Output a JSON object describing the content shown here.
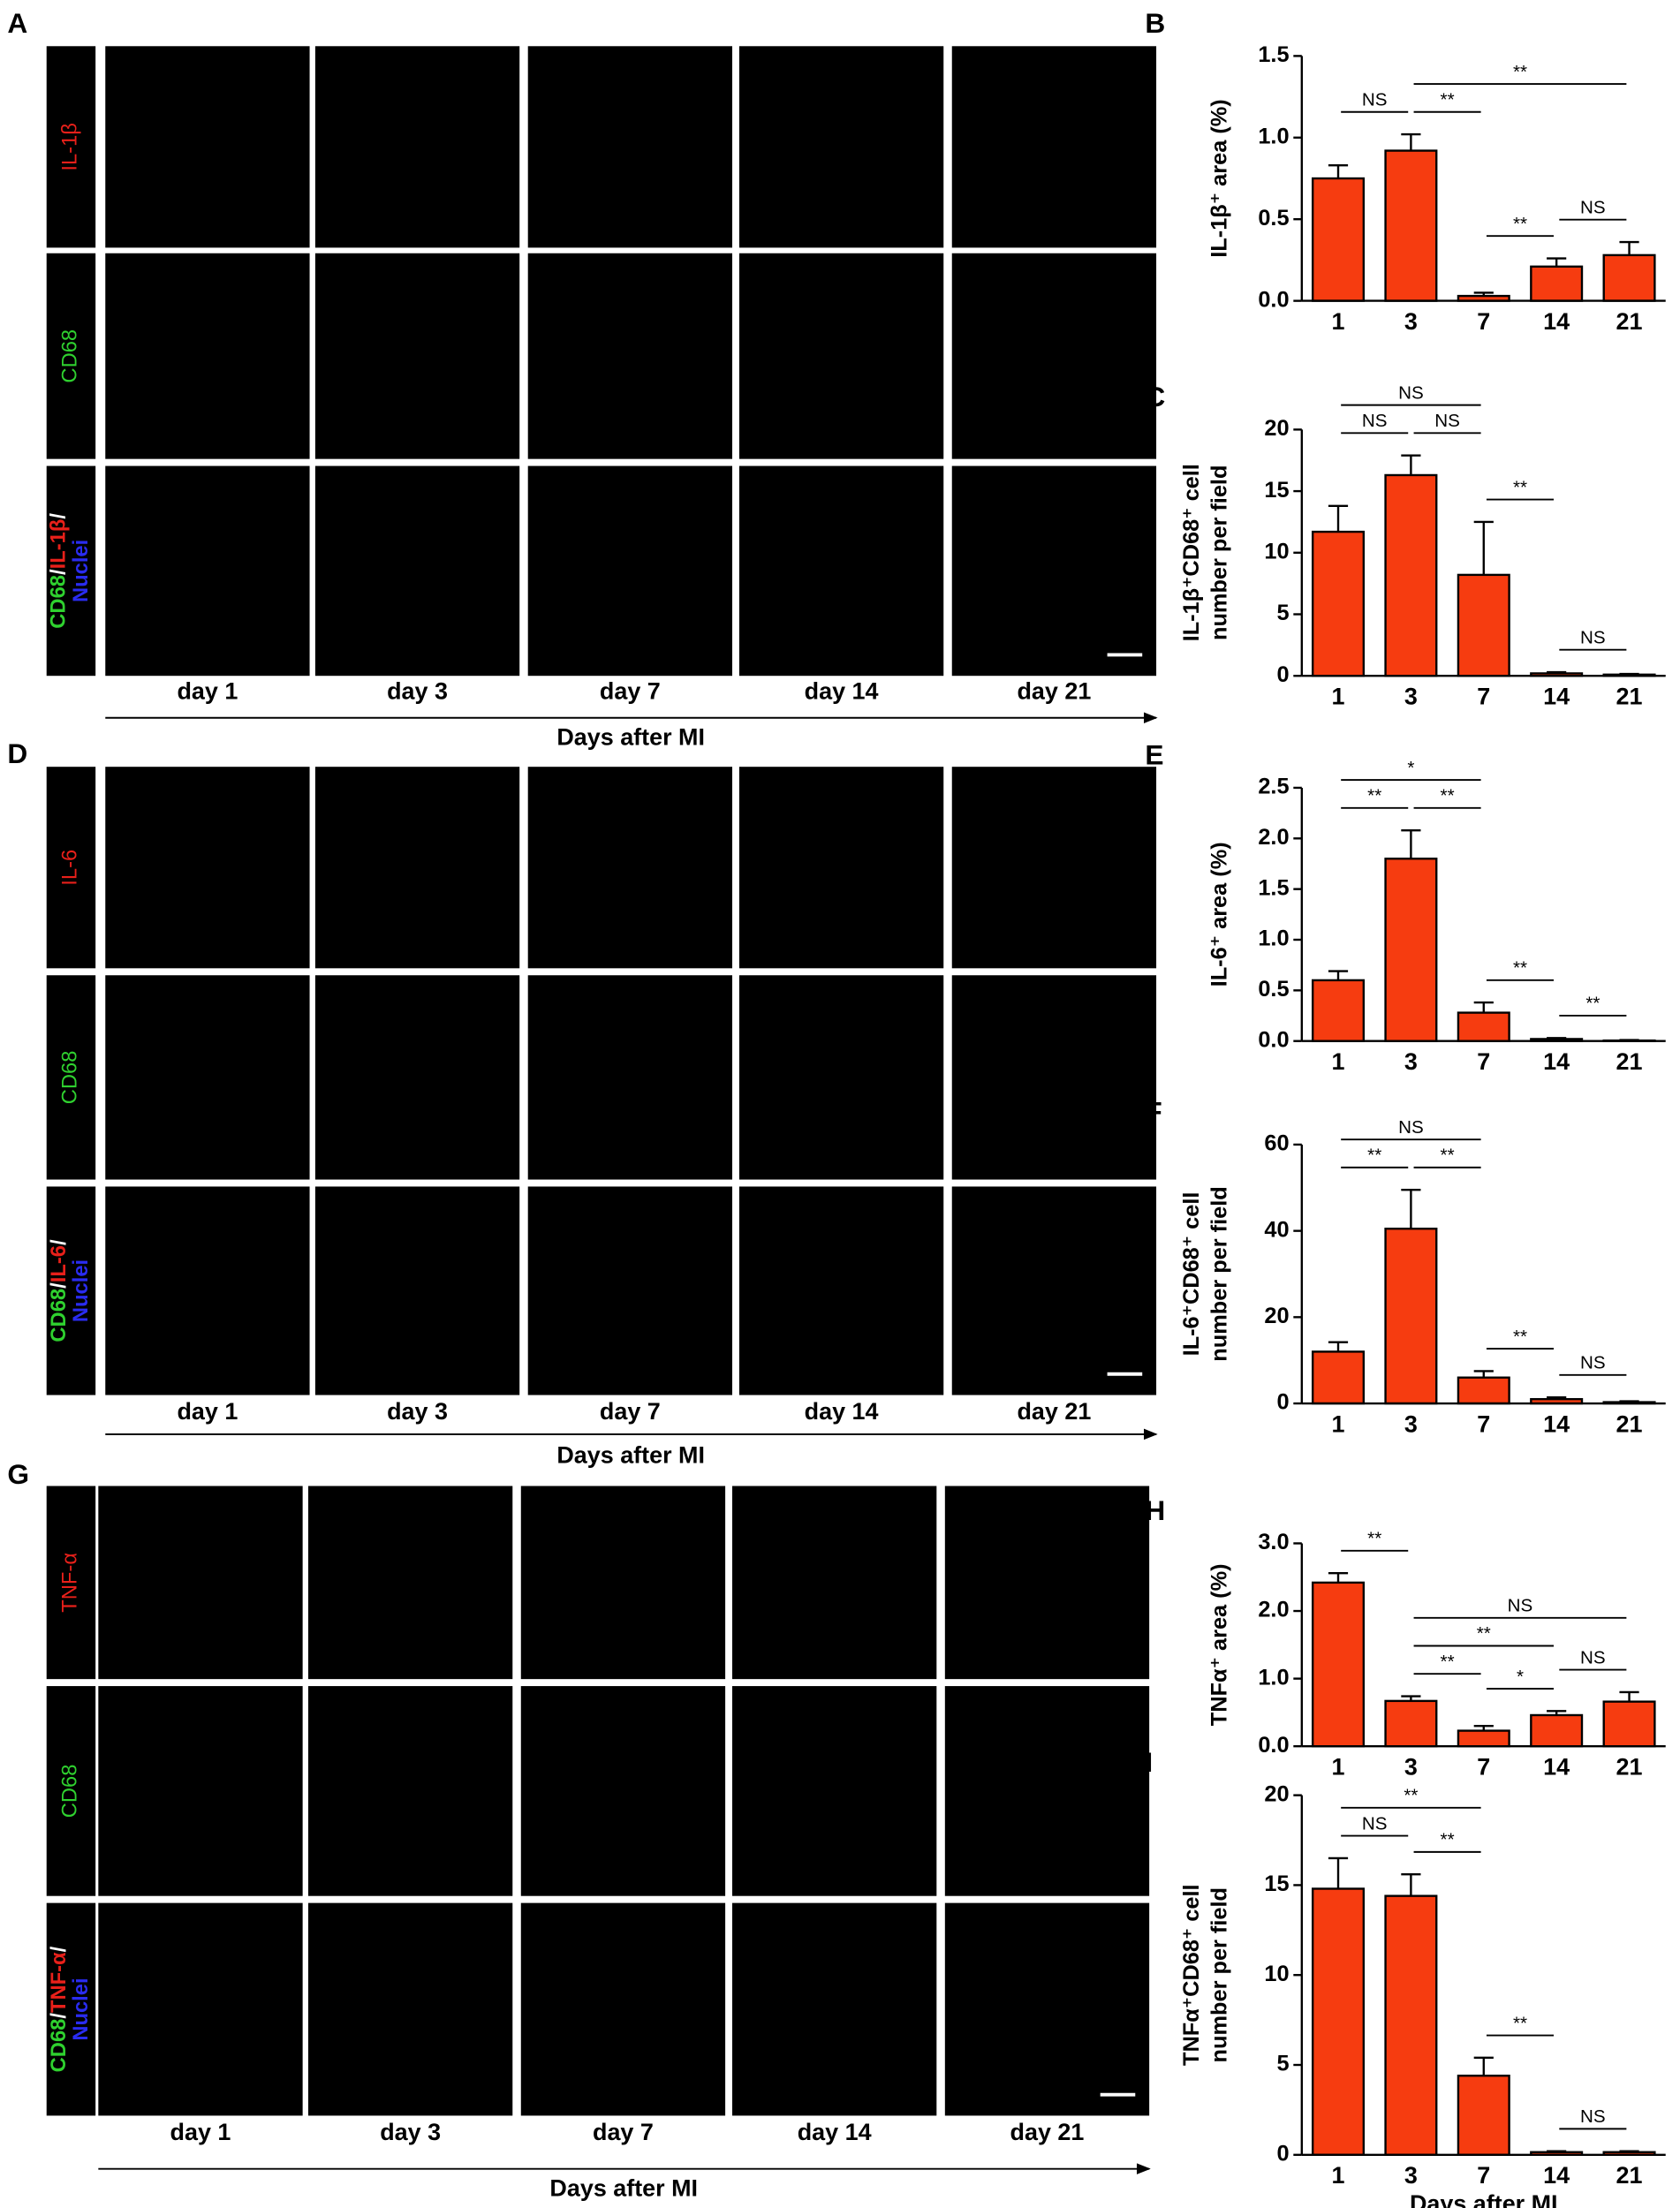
{
  "figure_panels": [
    {
      "letter": "A",
      "channels": [
        {
          "text": "IL-1β",
          "color": "#e8201a"
        },
        {
          "text": "CD68",
          "color": "#2fd12f"
        }
      ],
      "merged_label_lines": [
        [
          {
            "text": "CD68",
            "color": "#2fd12f"
          },
          {
            "text": "/",
            "color": "#ffffff"
          },
          {
            "text": "IL-1β",
            "color": "#e8201a"
          },
          {
            "text": "/",
            "color": "#ffffff"
          }
        ],
        [
          {
            "text": "Nuclei",
            "color": "#2a2cf0"
          }
        ]
      ],
      "days": [
        "day 1",
        "day 3",
        "day 7",
        "day 14",
        "day 21"
      ],
      "x_label": "Days after MI"
    },
    {
      "letter": "D",
      "channels": [
        {
          "text": "IL-6",
          "color": "#e8201a"
        },
        {
          "text": "CD68",
          "color": "#2fd12f"
        }
      ],
      "merged_label_lines": [
        [
          {
            "text": "CD68",
            "color": "#2fd12f"
          },
          {
            "text": "/",
            "color": "#ffffff"
          },
          {
            "text": "IL-6",
            "color": "#e8201a"
          },
          {
            "text": "/",
            "color": "#ffffff"
          }
        ],
        [
          {
            "text": "Nuclei",
            "color": "#2a2cf0"
          }
        ]
      ],
      "days": [
        "day 1",
        "day 3",
        "day 7",
        "day 14",
        "day 21"
      ],
      "x_label": "Days after MI"
    },
    {
      "letter": "G",
      "channels": [
        {
          "text": "TNF-α",
          "color": "#e8201a"
        },
        {
          "text": "CD68",
          "color": "#2fd12f"
        }
      ],
      "merged_label_lines": [
        [
          {
            "text": "CD68",
            "color": "#2fd12f"
          },
          {
            "text": "/",
            "color": "#ffffff"
          },
          {
            "text": "TNF-α",
            "color": "#e8201a"
          },
          {
            "text": "/",
            "color": "#ffffff"
          }
        ],
        [
          {
            "text": "Nuclei",
            "color": "#2a2cf0"
          }
        ]
      ],
      "days": [
        "day 1",
        "day 3",
        "day 7",
        "day 14",
        "day 21"
      ],
      "x_label": "Days after MI"
    }
  ],
  "chart_data": [
    {
      "type": "bar",
      "letter": "B",
      "y_label": [
        "IL-1β⁺ area (%)"
      ],
      "color": "#f63c10",
      "categories": [
        "1",
        "3",
        "7",
        "14",
        "21"
      ],
      "values": [
        0.75,
        0.92,
        0.03,
        0.21,
        0.28
      ],
      "errors": [
        0.08,
        0.1,
        0.02,
        0.05,
        0.08
      ],
      "ylim": [
        0,
        1.5
      ],
      "yticks": [
        {
          "value": 0,
          "label": "0.0"
        },
        0.5,
        {
          "value": 1,
          "label": "1.0"
        },
        1.5
      ],
      "annotations": [
        {
          "text": "NS",
          "between": [
            "1",
            "3"
          ]
        },
        {
          "text": "**",
          "between": [
            "3",
            "7"
          ]
        },
        {
          "text": "**",
          "between": [
            "3",
            "21"
          ]
        },
        {
          "text": "**",
          "between": [
            "7",
            "14"
          ]
        },
        {
          "text": "NS",
          "between": [
            "14",
            "21"
          ]
        }
      ]
    },
    {
      "type": "bar",
      "letter": "C",
      "y_label": [
        "IL-1β⁺CD68⁺ cell",
        "number per field"
      ],
      "color": "#f63c10",
      "categories": [
        "1",
        "3",
        "7",
        "14",
        "21"
      ],
      "values": [
        11.7,
        16.3,
        8.2,
        0.2,
        0.1
      ],
      "errors": [
        2.1,
        1.6,
        4.3,
        0.1,
        0.05
      ],
      "ylim": [
        0,
        20
      ],
      "yticks": [
        0,
        5,
        10,
        15,
        20
      ],
      "annotations": [
        {
          "text": "NS",
          "between": [
            "1",
            "7"
          ]
        },
        {
          "text": "NS",
          "between": [
            "1",
            "3"
          ]
        },
        {
          "text": "NS",
          "between": [
            "3",
            "7"
          ]
        },
        {
          "text": "**",
          "between": [
            "7",
            "14"
          ]
        },
        {
          "text": "NS",
          "between": [
            "14",
            "21"
          ]
        }
      ]
    },
    {
      "type": "bar",
      "letter": "E",
      "y_label": [
        "IL-6⁺ area (%)"
      ],
      "color": "#f63c10",
      "categories": [
        "1",
        "3",
        "7",
        "14",
        "21"
      ],
      "values": [
        0.6,
        1.8,
        0.28,
        0.02,
        0.005
      ],
      "errors": [
        0.09,
        0.28,
        0.1,
        0.01,
        0.005
      ],
      "ylim": [
        0,
        2.5
      ],
      "yticks": [
        {
          "value": 0,
          "label": "0.0"
        },
        0.5,
        {
          "value": 1,
          "label": "1.0"
        },
        1.5,
        {
          "value": 2,
          "label": "2.0"
        },
        2.5
      ],
      "annotations": [
        {
          "text": "*",
          "between": [
            "1",
            "7"
          ]
        },
        {
          "text": "**",
          "between": [
            "1",
            "3"
          ]
        },
        {
          "text": "**",
          "between": [
            "3",
            "7"
          ]
        },
        {
          "text": "**",
          "between": [
            "7",
            "14"
          ]
        },
        {
          "text": "**",
          "between": [
            "14",
            "21"
          ]
        }
      ]
    },
    {
      "type": "bar",
      "letter": "F",
      "y_label": [
        "IL-6⁺CD68⁺ cell",
        "number per field"
      ],
      "color": "#f63c10",
      "categories": [
        "1",
        "3",
        "7",
        "14",
        "21"
      ],
      "values": [
        12,
        40.5,
        6,
        1,
        0.3
      ],
      "errors": [
        2.2,
        9,
        1.5,
        0.4,
        0.2
      ],
      "ylim": [
        0,
        60
      ],
      "yticks": [
        0,
        20,
        40,
        60
      ],
      "annotations": [
        {
          "text": "NS",
          "between": [
            "1",
            "7"
          ]
        },
        {
          "text": "**",
          "between": [
            "1",
            "3"
          ]
        },
        {
          "text": "**",
          "between": [
            "3",
            "7"
          ]
        },
        {
          "text": "**",
          "between": [
            "7",
            "14"
          ]
        },
        {
          "text": "NS",
          "between": [
            "14",
            "21"
          ]
        }
      ]
    },
    {
      "type": "bar",
      "letter": "H",
      "y_label": [
        "TNFα⁺ area (%)"
      ],
      "color": "#f63c10",
      "categories": [
        "1",
        "3",
        "7",
        "14",
        "21"
      ],
      "values": [
        2.42,
        0.67,
        0.23,
        0.46,
        0.66
      ],
      "errors": [
        0.14,
        0.07,
        0.07,
        0.06,
        0.14
      ],
      "ylim": [
        0,
        3
      ],
      "yticks": [
        {
          "value": 0,
          "label": "0.0"
        },
        {
          "value": 1,
          "label": "1.0"
        },
        {
          "value": 2,
          "label": "2.0"
        },
        {
          "value": 3,
          "label": "3.0"
        }
      ],
      "annotations": [
        {
          "text": "**",
          "between": [
            "1",
            "3"
          ]
        },
        {
          "text": "NS",
          "between": [
            "3",
            "21"
          ]
        },
        {
          "text": "**",
          "between": [
            "3",
            "14"
          ]
        },
        {
          "text": "**",
          "between": [
            "3",
            "7"
          ]
        },
        {
          "text": "*",
          "between": [
            "7",
            "14"
          ]
        },
        {
          "text": "NS",
          "between": [
            "14",
            "21"
          ]
        }
      ]
    },
    {
      "type": "bar",
      "letter": "I",
      "y_label": [
        "TNFα⁺CD68⁺ cell",
        "number per field"
      ],
      "color": "#f63c10",
      "categories": [
        "1",
        "3",
        "7",
        "14",
        "21"
      ],
      "values": [
        14.8,
        14.4,
        4.4,
        0.15,
        0.15
      ],
      "errors": [
        1.7,
        1.2,
        1.0,
        0.05,
        0.05
      ],
      "ylim": [
        0,
        20
      ],
      "yticks": [
        0,
        5,
        10,
        15,
        20
      ],
      "x_label": "Days after MI",
      "annotations": [
        {
          "text": "**",
          "between": [
            "1",
            "7"
          ]
        },
        {
          "text": "NS",
          "between": [
            "1",
            "3"
          ]
        },
        {
          "text": "**",
          "between": [
            "3",
            "7"
          ]
        },
        {
          "text": "**",
          "between": [
            "7",
            "14"
          ]
        },
        {
          "text": "NS",
          "between": [
            "14",
            "21"
          ]
        }
      ]
    }
  ]
}
